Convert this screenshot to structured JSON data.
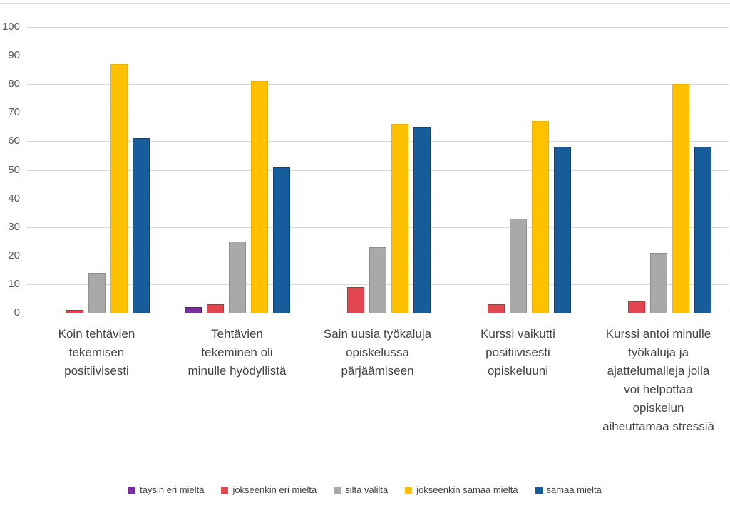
{
  "chart_data": {
    "type": "bar",
    "title": "",
    "xlabel": "",
    "ylabel": "",
    "ylim": [
      0,
      100
    ],
    "yticks": [
      0,
      10,
      20,
      30,
      40,
      50,
      60,
      70,
      80,
      90,
      100
    ],
    "grid": "horizontal",
    "legend_position": "bottom",
    "categories": [
      "Koin tehtävien tekemisen positiivisesti",
      "Tehtävien tekeminen oli minulle hyödyllistä",
      "Sain uusia työkaluja opiskelussa pärjäämiseen",
      "Kurssi vaikutti positiivisesti opiskeluuni",
      "Kurssi antoi minulle työkaluja ja ajattelumalleja jolla voi helpottaa opiskelun aiheuttamaa stressiä"
    ],
    "category_lines": [
      [
        "Koin tehtävien",
        "tekemisen",
        "positiivisesti"
      ],
      [
        "Tehtävien",
        "tekeminen oli",
        "minulle hyödyllistä"
      ],
      [
        "Sain uusia työkaluja",
        "opiskelussa",
        "pärjäämiseen"
      ],
      [
        "Kurssi vaikutti",
        "positiivisesti",
        "opiskeluuni"
      ],
      [
        "Kurssi antoi minulle",
        "työkaluja ja",
        "ajattelumalleja jolla",
        "voi helpottaa",
        "opiskelun",
        "aiheuttamaa stressiä"
      ]
    ],
    "series": [
      {
        "name": "täysin eri mieltä",
        "color": "#7A2DA0",
        "border": "#5A1E78",
        "values": [
          0,
          2,
          0,
          0,
          0
        ]
      },
      {
        "name": "jokseenkin eri mieltä",
        "color": "#E2474F",
        "border": "#BE2F39",
        "values": [
          1,
          3,
          9,
          3,
          4
        ]
      },
      {
        "name": "siltä väliltä",
        "color": "#A9A9A9",
        "border": "#8f8f8f",
        "values": [
          14,
          25,
          23,
          33,
          21
        ]
      },
      {
        "name": "jokseenkin samaa mieltä",
        "color": "#FFC000",
        "border": "#EFB300",
        "values": [
          87,
          81,
          66,
          67,
          80
        ]
      },
      {
        "name": "samaa mieltä",
        "color": "#175D9B",
        "border": "#17406B",
        "values": [
          61,
          51,
          65,
          58,
          58
        ]
      }
    ]
  },
  "colors": {
    "background": "#FFFFFF",
    "gridline": "#D9D9D9",
    "axis_line": "#C9C9C9",
    "tick_label": "#595959",
    "category_label": "#444444",
    "legend_label": "#404040"
  }
}
